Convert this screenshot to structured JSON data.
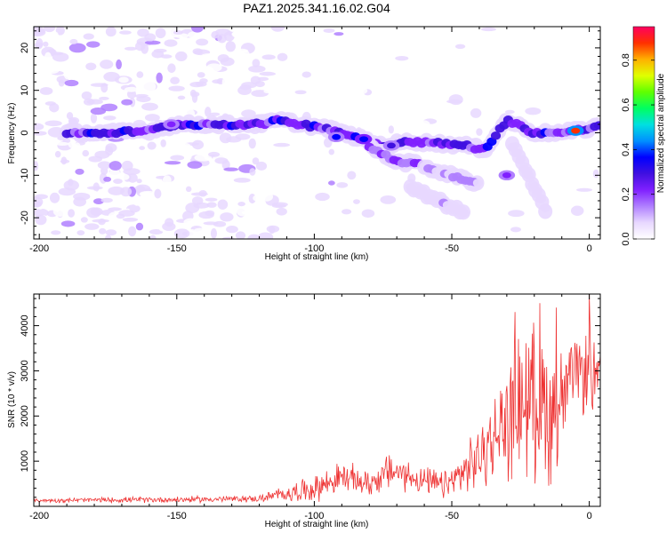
{
  "title": "PAZ1.2025.341.16.02.G04",
  "colors": {
    "snr_line": "#ee3333",
    "axis": "#000000",
    "colormap": [
      "#ffffff",
      "#e8d8ff",
      "#b080ff",
      "#8020ff",
      "#4010e0",
      "#0000ff",
      "#0090ff",
      "#00e0e0",
      "#00ff60",
      "#60ff00",
      "#e0ff00",
      "#ffb000",
      "#ff3000",
      "#ff0060"
    ]
  },
  "chart_data": [
    {
      "type": "heatmap",
      "name": "spectrogram",
      "xlabel": "Height of straight line (km)",
      "ylabel": "Frequency (Hz)",
      "xlim": [
        -202,
        4
      ],
      "ylim": [
        -25,
        25
      ],
      "xticks": [
        -200,
        -150,
        -100,
        -50,
        0
      ],
      "yticks": [
        -20,
        -10,
        0,
        10,
        20
      ],
      "colorbar": {
        "label": "Normalized spectral amplitude",
        "range": [
          0,
          0.95
        ],
        "ticks": [
          "0.0",
          "0.2",
          "0.4",
          "0.6",
          "0.8"
        ],
        "tick_values": [
          0.0,
          0.2,
          0.4,
          0.6,
          0.8
        ]
      },
      "ridges": [
        {
          "name": "main-ridge",
          "points": [
            [
              -190,
              0
            ],
            [
              -175,
              0
            ],
            [
              -160,
              0.5
            ],
            [
              -150,
              2
            ],
            [
              -135,
              2
            ],
            [
              -120,
              2
            ],
            [
              -112,
              3
            ],
            [
              -105,
              2
            ],
            [
              -95,
              1
            ],
            [
              -85,
              -1
            ],
            [
              -75,
              -3
            ],
            [
              -65,
              -2
            ],
            [
              -55,
              -2.5
            ],
            [
              -45,
              -3
            ],
            [
              -38,
              -4
            ],
            [
              -30,
              3
            ],
            [
              -20,
              0
            ],
            [
              -10,
              0
            ],
            [
              0,
              1
            ],
            [
              4,
              2
            ]
          ],
          "amplitude": 0.3
        },
        {
          "name": "branch-ridge-1",
          "points": [
            [
              -80,
              -3
            ],
            [
              -70,
              -7
            ],
            [
              -62,
              -7
            ]
          ],
          "amplitude": 0.2
        },
        {
          "name": "branch-ridge-2",
          "points": [
            [
              -60,
              -8
            ],
            [
              -50,
              -10
            ],
            [
              -40,
              -12
            ]
          ],
          "amplitude": 0.15
        },
        {
          "name": "branch-ridge-3",
          "points": [
            [
              -65,
              -13
            ],
            [
              -55,
              -16
            ],
            [
              -45,
              -19
            ]
          ],
          "amplitude": 0.1
        },
        {
          "name": "branch-ridge-4",
          "points": [
            [
              -28,
              -3
            ],
            [
              -22,
              -10
            ],
            [
              -16,
              -18
            ]
          ],
          "amplitude": 0.08
        }
      ],
      "peaks": [
        {
          "x": -152,
          "y": 2,
          "value": 0.25
        },
        {
          "x": -92,
          "y": -1,
          "value": 0.35
        },
        {
          "x": -82,
          "y": -1.5,
          "value": 0.4
        },
        {
          "x": -72,
          "y": -3,
          "value": 0.3
        },
        {
          "x": -30,
          "y": -10,
          "value": 0.25
        },
        {
          "x": -5,
          "y": 0.5,
          "value": 0.9
        }
      ]
    },
    {
      "type": "line",
      "name": "snr",
      "xlabel": "Height of straight line (km)",
      "ylabel": "SNR (10 * v/v)",
      "xlim": [
        -202,
        4
      ],
      "ylim": [
        0,
        4700
      ],
      "xticks": [
        -200,
        -150,
        -100,
        -50,
        0
      ],
      "yticks": [
        1000,
        2000,
        3000,
        4000
      ],
      "envelope": [
        {
          "x": -202,
          "mean": 130,
          "amp": 50
        },
        {
          "x": -180,
          "mean": 140,
          "amp": 70
        },
        {
          "x": -150,
          "mean": 150,
          "amp": 80
        },
        {
          "x": -120,
          "mean": 170,
          "amp": 90
        },
        {
          "x": -100,
          "mean": 400,
          "amp": 350
        },
        {
          "x": -90,
          "mean": 650,
          "amp": 400
        },
        {
          "x": -80,
          "mean": 500,
          "amp": 350
        },
        {
          "x": -72,
          "mean": 800,
          "amp": 500
        },
        {
          "x": -60,
          "mean": 550,
          "amp": 350
        },
        {
          "x": -52,
          "mean": 450,
          "amp": 400
        },
        {
          "x": -45,
          "mean": 800,
          "amp": 600
        },
        {
          "x": -38,
          "mean": 1200,
          "amp": 900
        },
        {
          "x": -30,
          "mean": 1900,
          "amp": 1500
        },
        {
          "x": -25,
          "mean": 2400,
          "amp": 2000
        },
        {
          "x": -18,
          "mean": 2300,
          "amp": 2000
        },
        {
          "x": -12,
          "mean": 2000,
          "amp": 1900
        },
        {
          "x": -6,
          "mean": 2900,
          "amp": 800
        },
        {
          "x": 0,
          "mean": 3000,
          "amp": 1200
        },
        {
          "x": 4,
          "mean": 2600,
          "amp": 900
        }
      ],
      "peaks": [
        {
          "x": -27,
          "y": 4300
        },
        {
          "x": -18,
          "y": 4500
        },
        {
          "x": -12,
          "y": 4400
        },
        {
          "x": 0,
          "y": 4700
        }
      ]
    }
  ]
}
